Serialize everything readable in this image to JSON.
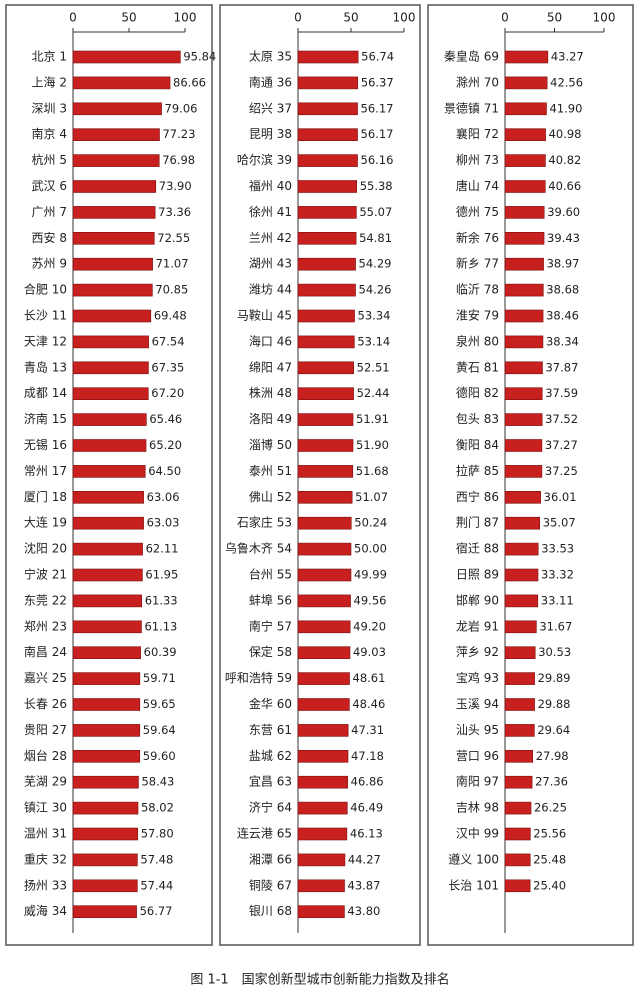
{
  "caption": "图 1-1　国家创新型城市创新能力指数及排名",
  "chart_data": [
    {
      "type": "bar",
      "orientation": "horizontal",
      "color": "#c8201e",
      "xlim": [
        0,
        100
      ],
      "xticks": [
        0,
        50,
        100
      ],
      "categories": [
        "北京 1",
        "上海 2",
        "深圳 3",
        "南京 4",
        "杭州 5",
        "武汉 6",
        "广州 7",
        "西安 8",
        "苏州 9",
        "合肥 10",
        "长沙 11",
        "天津 12",
        "青岛 13",
        "成都 14",
        "济南 15",
        "无锡 16",
        "常州 17",
        "厦门 18",
        "大连 19",
        "沈阳 20",
        "宁波 21",
        "东莞 22",
        "郑州 23",
        "南昌 24",
        "嘉兴 25",
        "长春 26",
        "贵阳 27",
        "烟台 28",
        "芜湖 29",
        "镇江 30",
        "温州 31",
        "重庆 32",
        "扬州 33",
        "威海 34"
      ],
      "values": [
        95.84,
        86.66,
        79.06,
        77.23,
        76.98,
        73.9,
        73.36,
        72.55,
        71.07,
        70.85,
        69.48,
        67.54,
        67.35,
        67.2,
        65.46,
        65.2,
        64.5,
        63.06,
        63.03,
        62.11,
        61.95,
        61.33,
        61.13,
        60.39,
        59.71,
        59.65,
        59.64,
        59.6,
        58.43,
        58.02,
        57.8,
        57.48,
        57.44,
        56.77
      ],
      "value_labels": [
        "95.84",
        "86.66",
        "79.06",
        "77.23",
        "76.98",
        "73.90",
        "73.36",
        "72.55",
        "71.07",
        "70.85",
        "69.48",
        "67.54",
        "67.35",
        "67.20",
        "65.46",
        "65.20",
        "64.50",
        "63.06",
        "63.03",
        "62.11",
        "61.95",
        "61.33",
        "61.13",
        "60.39",
        "59.71",
        "59.65",
        "59.64",
        "59.60",
        "58.43",
        "58.02",
        "57.80",
        "57.48",
        "57.44",
        "56.77"
      ]
    },
    {
      "type": "bar",
      "orientation": "horizontal",
      "color": "#c8201e",
      "xlim": [
        0,
        100
      ],
      "xticks": [
        0,
        50,
        100
      ],
      "categories": [
        "太原 35",
        "南通 36",
        "绍兴 37",
        "昆明 38",
        "哈尔滨 39",
        "福州 40",
        "徐州 41",
        "兰州 42",
        "湖州 43",
        "潍坊 44",
        "马鞍山 45",
        "海口 46",
        "绵阳 47",
        "株洲 48",
        "洛阳 49",
        "淄博 50",
        "泰州 51",
        "佛山 52",
        "石家庄 53",
        "乌鲁木齐 54",
        "台州 55",
        "蚌埠 56",
        "南宁 57",
        "保定 58",
        "呼和浩特 59",
        "金华 60",
        "东营 61",
        "盐城 62",
        "宜昌 63",
        "济宁 64",
        "连云港 65",
        "湘潭 66",
        "铜陵 67",
        "银川 68"
      ],
      "values": [
        56.74,
        56.37,
        56.17,
        56.17,
        56.16,
        55.38,
        55.07,
        54.81,
        54.29,
        54.26,
        53.34,
        53.14,
        52.51,
        52.44,
        51.91,
        51.9,
        51.68,
        51.07,
        50.24,
        50,
        49.99,
        49.56,
        49.2,
        49.03,
        48.61,
        48.46,
        47.31,
        47.18,
        46.86,
        46.49,
        46.13,
        44.27,
        43.87,
        43.8
      ],
      "value_labels": [
        "56.74",
        "56.37",
        "56.17",
        "56.17",
        "56.16",
        "55.38",
        "55.07",
        "54.81",
        "54.29",
        "54.26",
        "53.34",
        "53.14",
        "52.51",
        "52.44",
        "51.91",
        "51.90",
        "51.68",
        "51.07",
        "50.24",
        "50.00",
        "49.99",
        "49.56",
        "49.20",
        "49.03",
        "48.61",
        "48.46",
        "47.31",
        "47.18",
        "46.86",
        "46.49",
        "46.13",
        "44.27",
        "43.87",
        "43.80"
      ]
    },
    {
      "type": "bar",
      "orientation": "horizontal",
      "color": "#c8201e",
      "xlim": [
        0,
        100
      ],
      "xticks": [
        0,
        50,
        100
      ],
      "categories": [
        "秦皇岛 69",
        "滁州 70",
        "景德镇 71",
        "襄阳 72",
        "柳州 73",
        "唐山 74",
        "德州 75",
        "新余 76",
        "新乡 77",
        "临沂 78",
        "淮安 79",
        "泉州 80",
        "黄石 81",
        "德阳 82",
        "包头 83",
        "衡阳 84",
        "拉萨 85",
        "西宁 86",
        "荆门 87",
        "宿迁 88",
        "日照 89",
        "邯郸 90",
        "龙岩 91",
        "萍乡 92",
        "宝鸡 93",
        "玉溪 94",
        "汕头 95",
        "营口 96",
        "南阳 97",
        "吉林 98",
        "汉中 99",
        "遵义 100",
        "长治 101"
      ],
      "values": [
        43.27,
        42.56,
        41.9,
        40.98,
        40.82,
        40.66,
        39.6,
        39.43,
        38.97,
        38.68,
        38.46,
        38.34,
        37.87,
        37.59,
        37.52,
        37.27,
        37.25,
        36.01,
        35.07,
        33.53,
        33.32,
        33.11,
        31.67,
        30.53,
        29.89,
        29.88,
        29.64,
        27.98,
        27.36,
        26.25,
        25.56,
        25.48,
        25.4
      ],
      "value_labels": [
        "43.27",
        "42.56",
        "41.90",
        "40.98",
        "40.82",
        "40.66",
        "39.60",
        "39.43",
        "38.97",
        "38.68",
        "38.46",
        "38.34",
        "37.87",
        "37.59",
        "37.52",
        "37.27",
        "37.25",
        "36.01",
        "35.07",
        "33.53",
        "33.32",
        "33.11",
        "31.67",
        "30.53",
        "29.89",
        "29.88",
        "29.64",
        "27.98",
        "27.36",
        "26.25",
        "25.56",
        "25.48",
        "25.40"
      ]
    }
  ]
}
